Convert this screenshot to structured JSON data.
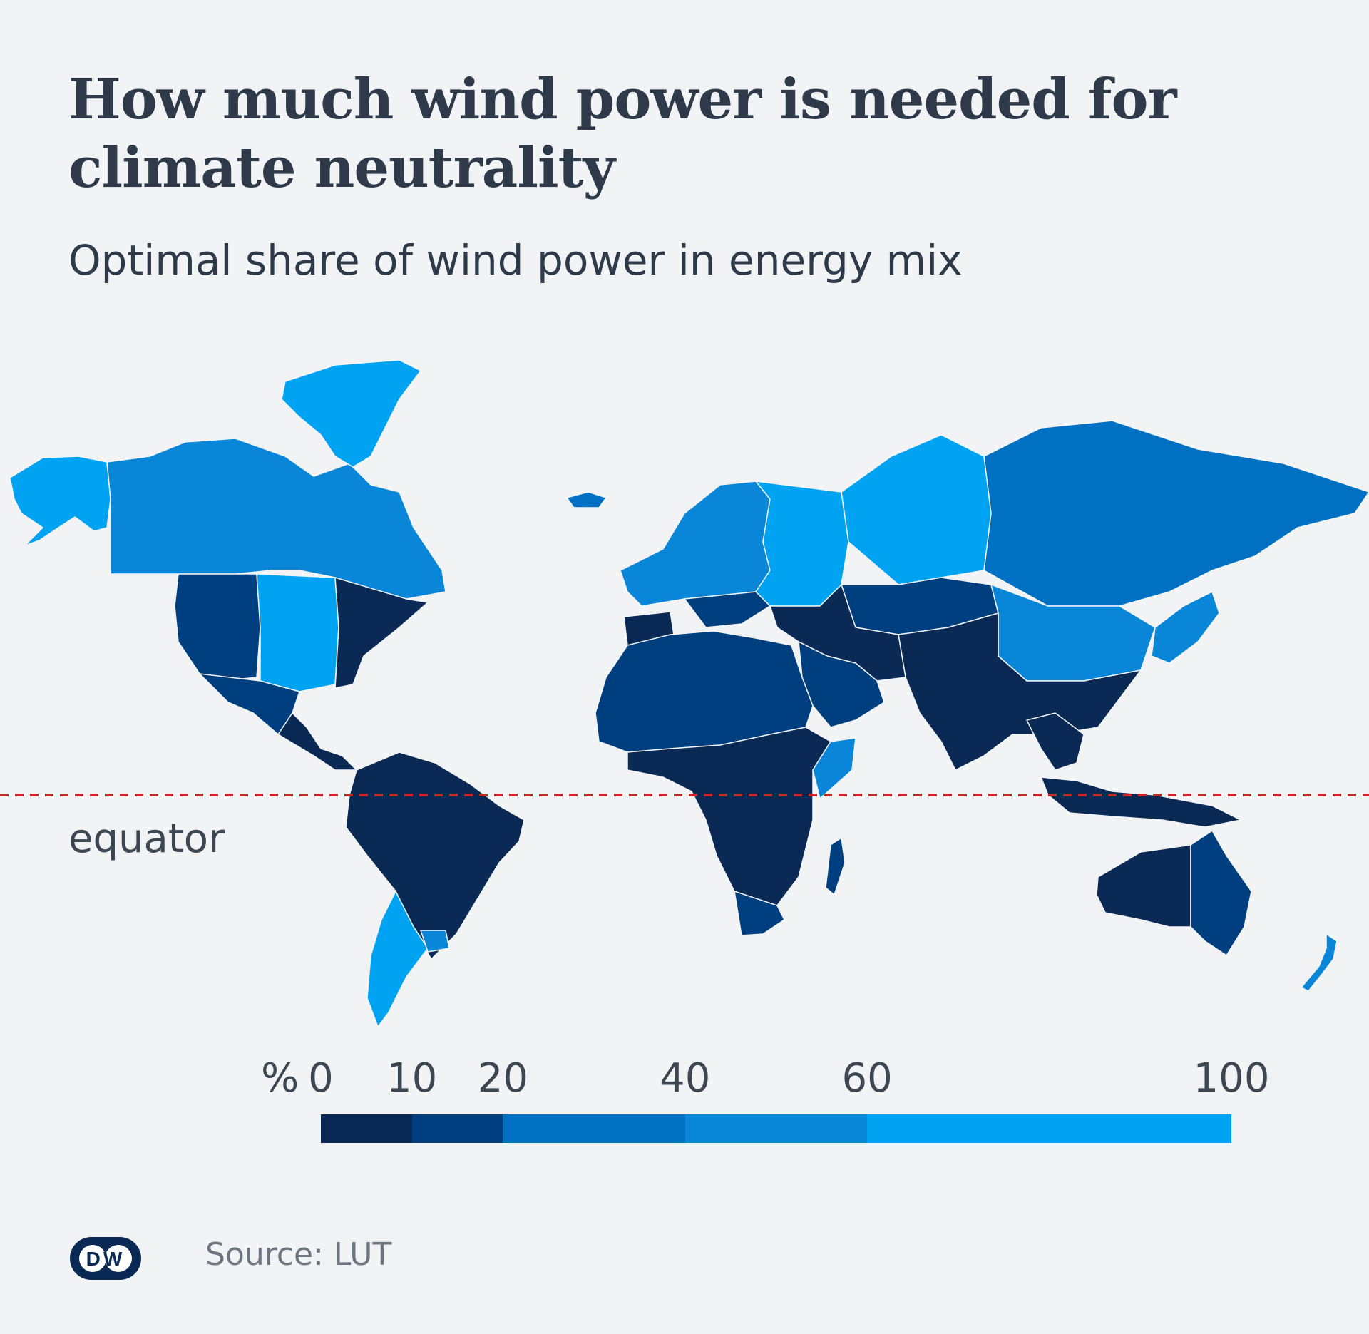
{
  "header": {
    "title": "How much wind power is needed for climate neutrality",
    "subtitle": "Optimal share of wind power in energy mix"
  },
  "map": {
    "equator_label": "equator",
    "equator_color": "#c1272d",
    "regions": [
      {
        "name": "Alaska",
        "bin": 4
      },
      {
        "name": "Canada",
        "bin": 3
      },
      {
        "name": "Greenland",
        "bin": 4
      },
      {
        "name": "USA West",
        "bin": 1
      },
      {
        "name": "USA Great Plains",
        "bin": 4
      },
      {
        "name": "USA East",
        "bin": 0
      },
      {
        "name": "Mexico",
        "bin": 1
      },
      {
        "name": "Central America",
        "bin": 0
      },
      {
        "name": "Northern South America",
        "bin": 0
      },
      {
        "name": "Southern Cone",
        "bin": 4
      },
      {
        "name": "Uruguay",
        "bin": 3
      },
      {
        "name": "Iceland",
        "bin": 2
      },
      {
        "name": "Western Europe",
        "bin": 3
      },
      {
        "name": "Iberia",
        "bin": 0
      },
      {
        "name": "Eastern Europe",
        "bin": 4
      },
      {
        "name": "Balkans",
        "bin": 1
      },
      {
        "name": "Russia West",
        "bin": 4
      },
      {
        "name": "Russia East",
        "bin": 2
      },
      {
        "name": "Central Asia",
        "bin": 1
      },
      {
        "name": "Mongolia North China",
        "bin": 3
      },
      {
        "name": "China India",
        "bin": 0
      },
      {
        "name": "Japan Korea",
        "bin": 3
      },
      {
        "name": "Middle East",
        "bin": 0
      },
      {
        "name": "Saudi Arabia",
        "bin": 1
      },
      {
        "name": "North Africa",
        "bin": 1
      },
      {
        "name": "Sub-Saharan Africa",
        "bin": 0
      },
      {
        "name": "East Africa Horn",
        "bin": 3
      },
      {
        "name": "Southern Africa",
        "bin": 1
      },
      {
        "name": "Madagascar",
        "bin": 1
      },
      {
        "name": "Southeast Asia",
        "bin": 0
      },
      {
        "name": "Indonesia",
        "bin": 0
      },
      {
        "name": "Australia West",
        "bin": 0
      },
      {
        "name": "Australia East",
        "bin": 1
      },
      {
        "name": "New Zealand",
        "bin": 3
      }
    ]
  },
  "legend": {
    "unit": "%",
    "ticks": [
      "0",
      "10",
      "20",
      "40",
      "60",
      "100"
    ],
    "tick_values": [
      0,
      10,
      20,
      40,
      60,
      100
    ],
    "colors": [
      "#0a2a55",
      "#003f7f",
      "#0071c2",
      "#0a86d8",
      "#00a2f2"
    ]
  },
  "footer": {
    "logo_text": "DW",
    "source": "Source: LUT"
  }
}
